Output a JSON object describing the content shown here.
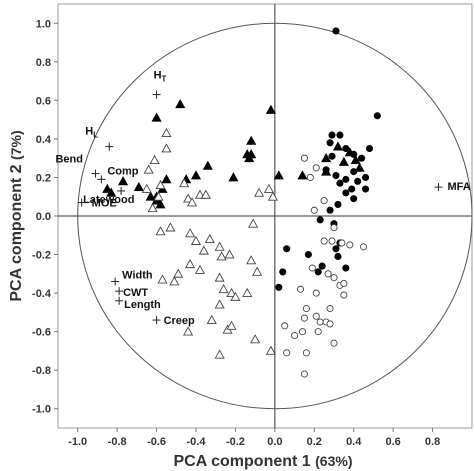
{
  "chart_data": {
    "type": "scatter",
    "title": "",
    "xlabel": "PCA component 1",
    "xlabel_pct": "(63%)",
    "ylabel": "PCA component 2",
    "ylabel_pct": "(7%)",
    "xlim": [
      -1.1,
      1.0
    ],
    "ylim": [
      -1.1,
      1.1
    ],
    "xticks": [
      -1.0,
      -0.8,
      -0.6,
      -0.4,
      -0.2,
      0.0,
      0.2,
      0.4,
      0.6,
      0.8
    ],
    "yticks": [
      -1.0,
      -0.8,
      -0.6,
      -0.4,
      -0.2,
      0.0,
      0.2,
      0.4,
      0.6,
      0.8,
      1.0
    ],
    "xtick_labels": [
      "-1.0",
      "-0.8",
      "-0.6",
      "-0.4",
      "-0.2",
      "0.0",
      "0.2",
      "0.4",
      "0.6",
      "0.8"
    ],
    "ytick_labels": [
      "-1.0",
      "-0.8",
      "-0.6",
      "-0.4",
      "-0.2",
      "0.0",
      "0.2",
      "0.4",
      "0.6",
      "0.8",
      "1.0"
    ],
    "grid": false,
    "unit_circle": true,
    "variable_loadings": [
      {
        "label": "H",
        "sub": "T",
        "x": -0.6,
        "y": 0.63
      },
      {
        "label": "H",
        "sub": "L",
        "x": -0.84,
        "y": 0.36
      },
      {
        "label": "Bend",
        "x": -0.91,
        "y": 0.22
      },
      {
        "label": "Comp",
        "x": -0.88,
        "y": 0.19
      },
      {
        "label": "Latewood",
        "x": -0.78,
        "y": 0.13
      },
      {
        "label": "MOE",
        "x": -0.98,
        "y": 0.07
      },
      {
        "label": "MFA",
        "x": 0.83,
        "y": 0.15
      },
      {
        "label": "Width",
        "x": -0.81,
        "y": -0.34
      },
      {
        "label": "CWT",
        "x": -0.79,
        "y": -0.39
      },
      {
        "label": "Length",
        "x": -0.79,
        "y": -0.44
      },
      {
        "label": "Creep",
        "x": -0.6,
        "y": -0.54
      }
    ],
    "series": [
      {
        "marker": "filled-triangle",
        "points": [
          [
            -0.48,
            0.58
          ],
          [
            -0.6,
            0.51
          ],
          [
            -0.02,
            0.55
          ],
          [
            -0.12,
            0.39
          ],
          [
            -0.14,
            0.32
          ],
          [
            -0.13,
            0.3
          ],
          [
            -0.12,
            0.32
          ],
          [
            -0.34,
            0.26
          ],
          [
            -0.4,
            0.21
          ],
          [
            -0.45,
            0.19
          ],
          [
            -0.55,
            0.19
          ],
          [
            -0.57,
            0.14
          ],
          [
            -0.6,
            0.08
          ],
          [
            -0.6,
            0.1
          ],
          [
            -0.63,
            0.1
          ],
          [
            -0.58,
            0.06
          ],
          [
            -0.69,
            0.15
          ],
          [
            -0.77,
            0.18
          ],
          [
            -0.83,
            0.12
          ],
          [
            -0.85,
            0.14
          ],
          [
            -0.21,
            0.2
          ],
          [
            0.02,
            0.21
          ],
          [
            0.14,
            0.21
          ],
          [
            0.26,
            0.3
          ],
          [
            0.38,
            0.33
          ],
          [
            0.41,
            0.29
          ],
          [
            0.43,
            0.25
          ],
          [
            0.35,
            0.28
          ],
          [
            0.26,
            0.23
          ],
          [
            0.32,
            0.36
          ]
        ]
      },
      {
        "marker": "open-triangle",
        "points": [
          [
            -0.55,
            0.43
          ],
          [
            -0.55,
            0.35
          ],
          [
            -0.61,
            0.29
          ],
          [
            -0.64,
            0.24
          ],
          [
            -0.58,
            0.16
          ],
          [
            -0.59,
            0.1
          ],
          [
            -0.65,
            0.14
          ],
          [
            -0.62,
            0.04
          ],
          [
            -0.46,
            0.17
          ],
          [
            -0.44,
            0.09
          ],
          [
            -0.38,
            0.11
          ],
          [
            -0.35,
            0.11
          ],
          [
            -0.42,
            0.07
          ],
          [
            -0.58,
            -0.08
          ],
          [
            -0.53,
            -0.06
          ],
          [
            -0.43,
            -0.09
          ],
          [
            -0.4,
            -0.13
          ],
          [
            -0.33,
            -0.12
          ],
          [
            -0.36,
            -0.18
          ],
          [
            -0.28,
            -0.16
          ],
          [
            -0.27,
            -0.21
          ],
          [
            -0.23,
            -0.2
          ],
          [
            -0.43,
            -0.25
          ],
          [
            -0.49,
            -0.3
          ],
          [
            -0.57,
            -0.33
          ],
          [
            -0.51,
            -0.34
          ],
          [
            -0.38,
            -0.28
          ],
          [
            -0.28,
            -0.32
          ],
          [
            -0.26,
            -0.38
          ],
          [
            -0.22,
            -0.4
          ],
          [
            -0.2,
            -0.42
          ],
          [
            -0.28,
            -0.46
          ],
          [
            -0.32,
            -0.54
          ],
          [
            -0.24,
            -0.59
          ],
          [
            -0.22,
            -0.57
          ],
          [
            -0.14,
            -0.4
          ],
          [
            -0.09,
            -0.29
          ],
          [
            -0.12,
            -0.23
          ],
          [
            -0.44,
            -0.6
          ],
          [
            -0.1,
            -0.64
          ],
          [
            -0.02,
            -0.7
          ],
          [
            -0.28,
            -0.72
          ],
          [
            -0.11,
            -0.04
          ],
          [
            -0.08,
            0.12
          ],
          [
            -0.03,
            0.14
          ],
          [
            -0.01,
            0.1
          ]
        ]
      },
      {
        "marker": "filled-circle",
        "points": [
          [
            0.31,
            0.96
          ],
          [
            0.52,
            0.52
          ],
          [
            0.29,
            0.42
          ],
          [
            0.33,
            0.42
          ],
          [
            0.28,
            0.38
          ],
          [
            0.29,
            0.31
          ],
          [
            0.36,
            0.35
          ],
          [
            0.4,
            0.32
          ],
          [
            0.48,
            0.35
          ],
          [
            0.44,
            0.3
          ],
          [
            0.26,
            0.24
          ],
          [
            0.31,
            0.21
          ],
          [
            0.4,
            0.23
          ],
          [
            0.36,
            0.19
          ],
          [
            0.42,
            0.18
          ],
          [
            0.46,
            0.2
          ],
          [
            0.46,
            0.14
          ],
          [
            0.39,
            0.14
          ],
          [
            0.33,
            0.17
          ],
          [
            0.36,
            0.12
          ],
          [
            0.4,
            0.09
          ],
          [
            0.28,
            0.03
          ],
          [
            0.32,
            0.06
          ],
          [
            0.23,
            -0.02
          ],
          [
            0.3,
            -0.04
          ],
          [
            0.33,
            -0.14
          ],
          [
            0.31,
            -0.17
          ],
          [
            0.32,
            -0.21
          ],
          [
            0.36,
            -0.27
          ],
          [
            0.06,
            -0.17
          ],
          [
            0.17,
            -0.2
          ],
          [
            0.24,
            -0.26
          ],
          [
            0.22,
            -0.29
          ],
          [
            0.04,
            -0.29
          ],
          [
            0.02,
            -0.37
          ]
        ]
      },
      {
        "marker": "open-circle",
        "points": [
          [
            0.15,
            0.3
          ],
          [
            0.21,
            0.25
          ],
          [
            0.18,
            0.2
          ],
          [
            0.25,
            0.08
          ],
          [
            0.2,
            0.03
          ],
          [
            0.3,
            -0.06
          ],
          [
            0.25,
            -0.13
          ],
          [
            0.29,
            -0.13
          ],
          [
            0.34,
            -0.14
          ],
          [
            0.38,
            -0.15
          ],
          [
            0.45,
            -0.16
          ],
          [
            0.19,
            -0.27
          ],
          [
            0.27,
            -0.3
          ],
          [
            0.3,
            -0.32
          ],
          [
            0.33,
            -0.36
          ],
          [
            0.35,
            -0.35
          ],
          [
            0.35,
            -0.41
          ],
          [
            0.13,
            -0.38
          ],
          [
            0.21,
            -0.4
          ],
          [
            0.28,
            -0.48
          ],
          [
            0.21,
            -0.52
          ],
          [
            0.23,
            -0.55
          ],
          [
            0.26,
            -0.55
          ],
          [
            0.28,
            -0.56
          ],
          [
            0.15,
            -0.53
          ],
          [
            0.14,
            -0.6
          ],
          [
            0.1,
            -0.62
          ],
          [
            0.3,
            -0.66
          ],
          [
            0.16,
            -0.71
          ],
          [
            0.06,
            -0.71
          ],
          [
            0.15,
            -0.82
          ],
          [
            0.05,
            -0.57
          ],
          [
            0.22,
            -0.6
          ],
          [
            0.16,
            -0.48
          ]
        ]
      }
    ]
  }
}
